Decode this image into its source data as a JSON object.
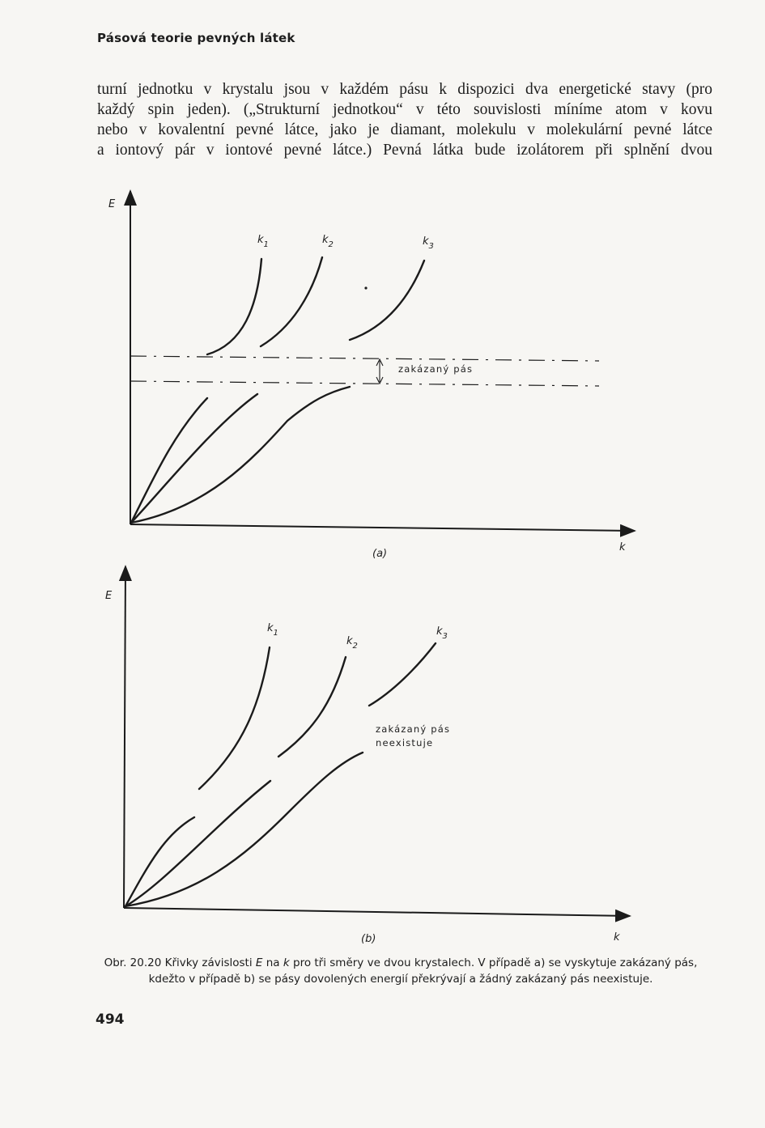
{
  "running_head": "Pásová teorie pevných látek",
  "body_lines": [
    "turní jednotku v krystalu jsou v každém pásu k dispozici dva energetické stavy (pro",
    "každý spin jeden). („Strukturní jednotkou“ v této souvislosti míníme atom v kovu",
    "nebo v kovalentní pevné látce, jako je diamant, molekulu v molekulární pevné látce",
    "a iontový pár v iontové pevné látce.) Pevná látka bude izolátorem při splnění dvou"
  ],
  "figure_a": {
    "y_axis_label": "E",
    "x_axis_label": "k",
    "panel_label": "(a)",
    "curve_labels": [
      "k",
      "k",
      "k"
    ],
    "curve_subscripts": [
      "1",
      "2",
      "3"
    ],
    "gap_label": "zakázaný pás"
  },
  "figure_b": {
    "y_axis_label": "E",
    "x_axis_label": "k",
    "panel_label": "(b)",
    "curve_labels": [
      "k",
      "k",
      "k"
    ],
    "curve_subscripts": [
      "1",
      "2",
      "3"
    ],
    "gap_label_line1": "zakázaný pás",
    "gap_label_line2": "neexistuje"
  },
  "caption": {
    "prefix": "Obr. 20.20 Křivky závislosti",
    "var_e": "E",
    "mid1": "na",
    "var_k": "k",
    "rest": "pro tři směry ve dvou krystalech. V případě a) se vyskytuje zakázaný pás, kdežto v případě b) se pásy dovolených energií překrývají a žádný zakázaný pás neexistuje."
  },
  "page_number": "494"
}
